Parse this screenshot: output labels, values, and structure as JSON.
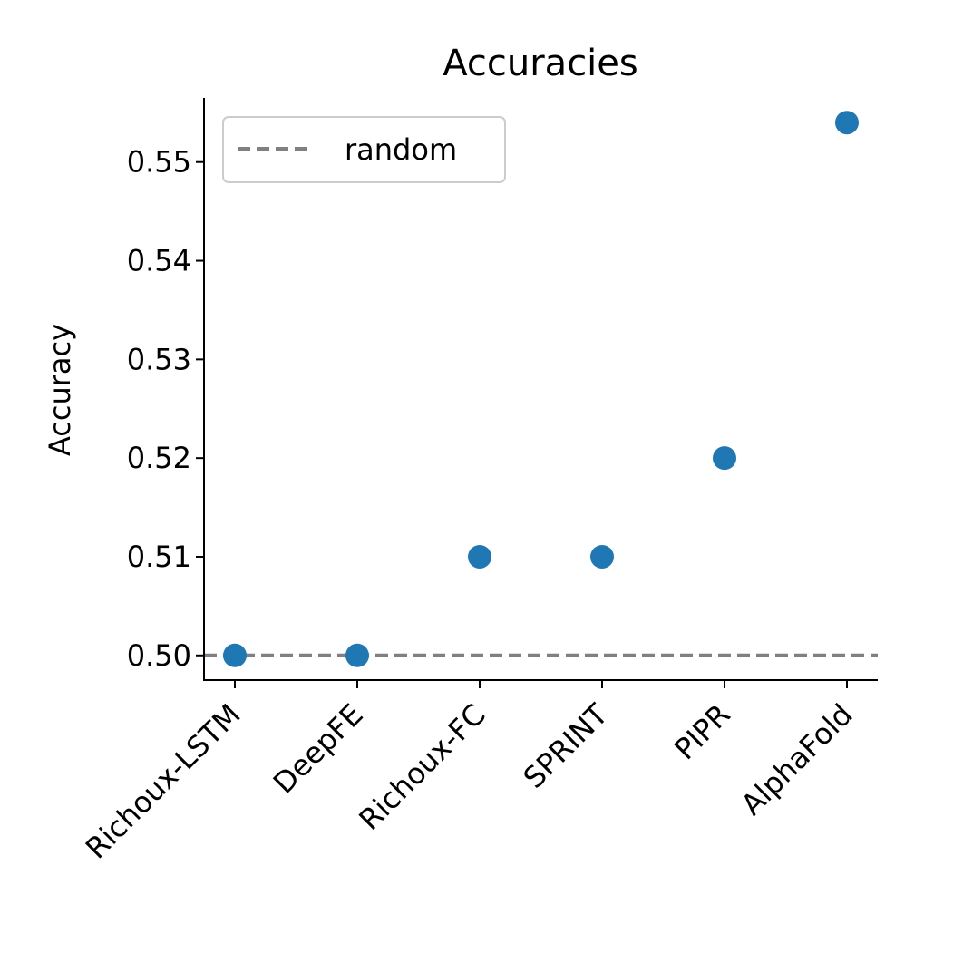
{
  "chart_data": {
    "type": "scatter",
    "title": "Accuracies",
    "xlabel": "",
    "ylabel": "Accuracy",
    "categories": [
      "Richoux-LSTM",
      "DeepFE",
      "Richoux-FC",
      "SPRINT",
      "PIPR",
      "AlphaFold"
    ],
    "series": [
      {
        "values": [
          0.5,
          0.5,
          0.51,
          0.51,
          0.52,
          0.554
        ],
        "color": "#1f77b4"
      }
    ],
    "reference_line": {
      "name": "random",
      "y": 0.5,
      "style": "dashed",
      "color": "#808080"
    },
    "ylim": [
      0.4975,
      0.5565
    ],
    "yticks": [
      0.5,
      0.51,
      0.52,
      0.53,
      0.54,
      0.55
    ],
    "ytick_labels": [
      "0.50",
      "0.51",
      "0.52",
      "0.53",
      "0.54",
      "0.55"
    ],
    "grid": false,
    "legend_position": "top-left"
  }
}
